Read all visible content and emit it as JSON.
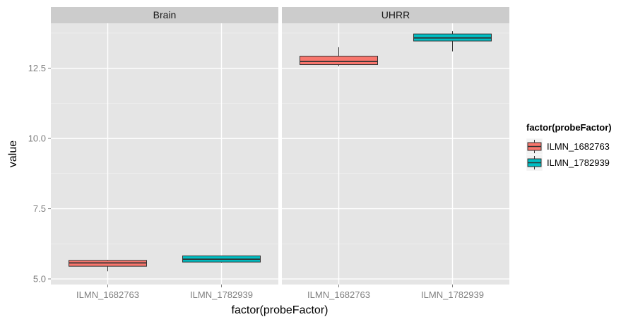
{
  "chart_data": {
    "type": "boxplot",
    "xlabel": "factor(probeFactor)",
    "ylabel": "value",
    "ylim": [
      4.8,
      14.1
    ],
    "y_ticks": [
      {
        "value": 5.0,
        "label": "5.0"
      },
      {
        "value": 7.5,
        "label": "7.5"
      },
      {
        "value": 10.0,
        "label": "10.0"
      },
      {
        "value": 12.5,
        "label": "12.5"
      }
    ],
    "categories": [
      "ILMN_1682763",
      "ILMN_1782939"
    ],
    "grid": true,
    "legend": {
      "title": "factor(probeFactor)",
      "position": "right",
      "entries": [
        {
          "label": "ILMN_1682763",
          "color": "#f8766d"
        },
        {
          "label": "ILMN_1782939",
          "color": "#00bfc4"
        }
      ]
    },
    "panels": [
      {
        "facet": "Brain",
        "boxes": [
          {
            "category": "ILMN_1682763",
            "min": 5.27,
            "q1": 5.45,
            "median": 5.57,
            "q3": 5.66,
            "max": 5.68
          },
          {
            "category": "ILMN_1782939",
            "min": 5.58,
            "q1": 5.6,
            "median": 5.7,
            "q3": 5.82,
            "max": 5.83
          }
        ]
      },
      {
        "facet": "UHRR",
        "boxes": [
          {
            "category": "ILMN_1682763",
            "min": 12.57,
            "q1": 12.63,
            "median": 12.74,
            "q3": 12.93,
            "max": 13.25
          },
          {
            "category": "ILMN_1782939",
            "min": 13.1,
            "q1": 13.47,
            "median": 13.58,
            "q3": 13.72,
            "max": 13.82
          }
        ]
      }
    ]
  }
}
